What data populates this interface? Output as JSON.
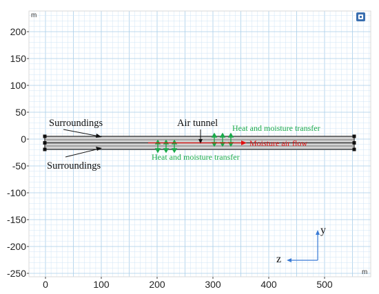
{
  "view": {
    "unit_top": "m",
    "unit_bottom": "m",
    "x_ticks": [
      "0",
      "100",
      "200",
      "300",
      "400",
      "500"
    ],
    "y_ticks": [
      "200",
      "150",
      "100",
      "50",
      "0",
      "-50",
      "-100",
      "-150",
      "-200",
      "-250"
    ],
    "toolbar_icon": "window-toggle-icon"
  },
  "annotations": {
    "surroundings_top": "Surroundings",
    "surroundings_bottom": "Surroundings",
    "air_tunnel": "Air tunnel",
    "heat_moisture_top": "Heat and moisture transfer",
    "heat_moisture_bottom": "Heat and moisture transfer",
    "moisture_air_flow": "Moisture air flow"
  },
  "triad": {
    "y_label": "y",
    "z_label": "z",
    "color": "#3a7bd5"
  },
  "colors": {
    "grid_minor": "#cfe4f5",
    "grid_major": "#a8cde9",
    "tunnel_fill": "#d2d2d2",
    "green": "#1aaa4a",
    "red": "#e01010"
  }
}
